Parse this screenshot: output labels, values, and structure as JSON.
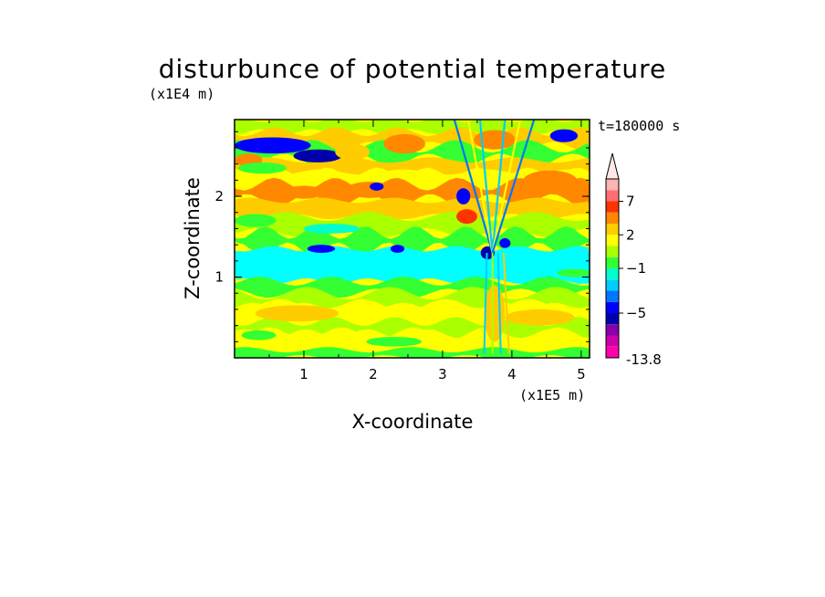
{
  "chart_data": {
    "type": "heatmap",
    "title": "disturbunce of potential temperature",
    "time_label": "t=180000 s",
    "xlabel": "X-coordinate",
    "ylabel": "Z-coordinate",
    "x_unit": "(x1E5 m)",
    "y_unit": "(x1E4 m)",
    "xlim": [
      0,
      5.12
    ],
    "ylim": [
      0,
      2.95
    ],
    "x_ticks": [
      1,
      2,
      3,
      4,
      5
    ],
    "y_ticks": [
      1,
      2
    ],
    "x_tick_labels": [
      "1",
      "2",
      "3",
      "4",
      "5"
    ],
    "y_tick_labels": [
      "1",
      "2"
    ],
    "colorbar": {
      "min_label": "-13.8",
      "labels": [
        {
          "value": 7,
          "text": "7"
        },
        {
          "value": 2,
          "text": "2"
        },
        {
          "value": -1,
          "text": "−1"
        },
        {
          "value": -5,
          "text": "−5"
        }
      ],
      "levels": [
        -13.8,
        -9,
        -7,
        -6,
        -5,
        -4,
        -3,
        -2,
        -1,
        0,
        1,
        2,
        3,
        5,
        7,
        9,
        13
      ],
      "colors": [
        "#ff00aa",
        "#cc00aa",
        "#8800aa",
        "#0000aa",
        "#0000ff",
        "#0077ff",
        "#00ccff",
        "#00ffcc",
        "#33ff33",
        "#aaff00",
        "#ffff00",
        "#ffcc00",
        "#ff8800",
        "#ff3300",
        "#ff6f6f",
        "#ffb3b3"
      ],
      "extend": "max"
    },
    "field_description": "horizontal layered bands of disturbance; strongest negative (blue) patches near z=2.6 and z=1.3, warm (orange/red) layers near z=2.0-2.5, mixed green/yellow lower layers, with a V-shaped wave disturbance centred near x=3.7"
  }
}
